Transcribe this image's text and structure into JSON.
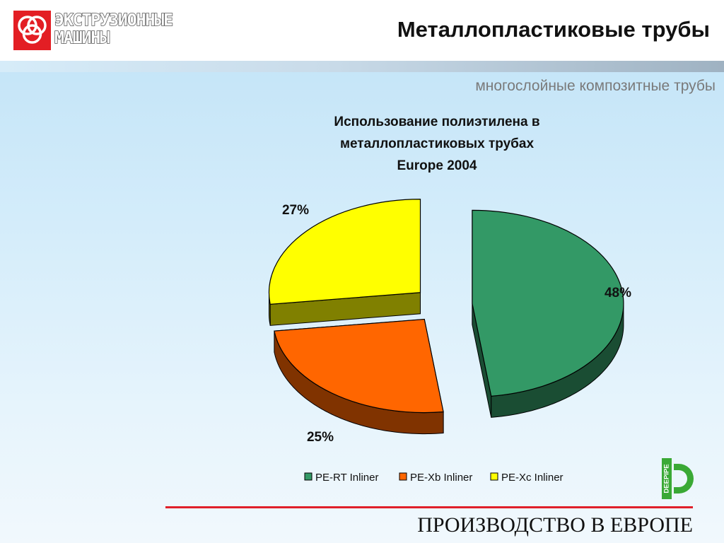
{
  "header": {
    "logo_line1": "ЭКСТРУЗИОННЫЕ",
    "logo_line2": "МАШИНЫ",
    "title": "Металлопластиковые трубы"
  },
  "subtitle": "многослойные композитные трубы",
  "colors": {
    "brand_red": "#e31e24",
    "badge_green": "#3aa935"
  },
  "chart_data": {
    "type": "pie",
    "title_lines": [
      "Использование полиэтилена в",
      "металлопластиковых трубах",
      "Europe 2004"
    ],
    "series": [
      {
        "name": "PE-RT Inliner",
        "value": 48,
        "label": "48%",
        "color": "#339966",
        "side_color": "#1a4d33"
      },
      {
        "name": "PE-Xb Inliner",
        "value": 25,
        "label": "25%",
        "color": "#ff6600",
        "side_color": "#803300"
      },
      {
        "name": "PE-Xc Inliner",
        "value": 27,
        "label": "27%",
        "color": "#ffff00",
        "side_color": "#808000"
      }
    ],
    "legend_position": "bottom",
    "exploded": true,
    "three_d": true
  },
  "badge": {
    "text": "DEEPIPE",
    "icon": "letter-d-logo-icon"
  },
  "footer": {
    "text": "ПРОИЗВОДСТВО В ЕВРОПЕ"
  }
}
